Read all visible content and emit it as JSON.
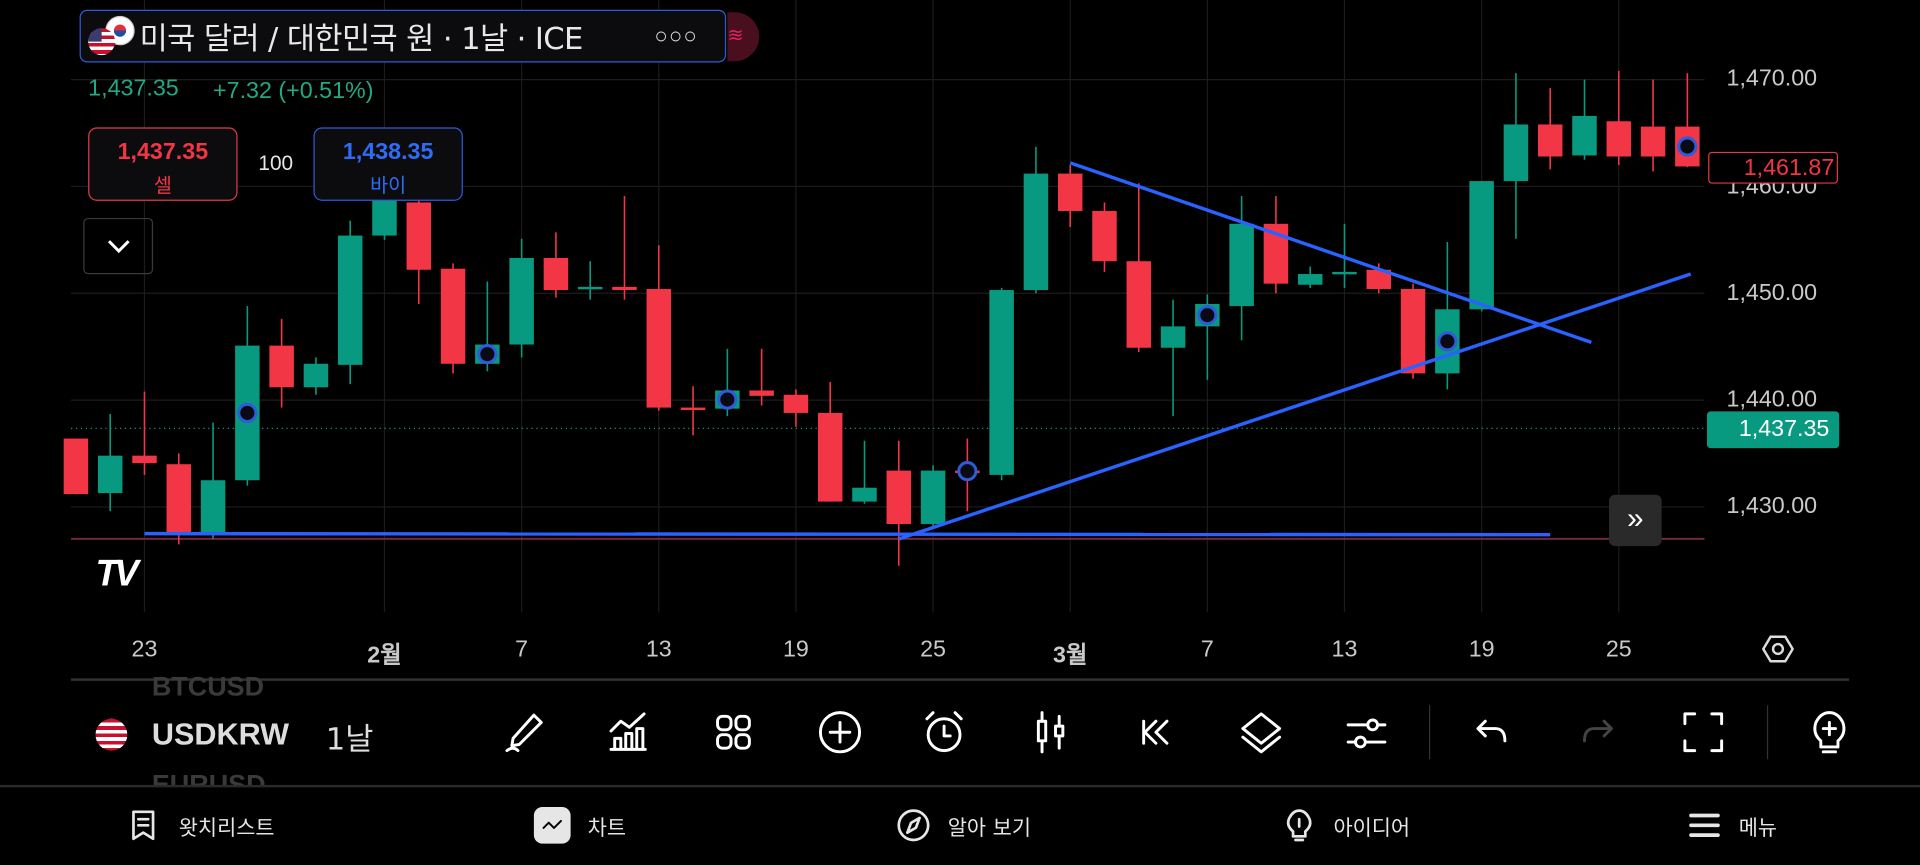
{
  "header": {
    "title": "미국 달러 / 대한민국 원 · 1날 · ICE",
    "more_icon": "ellipsis-icon",
    "last_price": "1,437.35",
    "change": "+7.32 (+0.51%)"
  },
  "trade": {
    "sell_price": "1,437.35",
    "sell_label": "셀",
    "quantity": "100",
    "buy_price": "1,438.35",
    "buy_label": "바이"
  },
  "colors": {
    "up": "#089981",
    "down": "#f23645",
    "line": "#2962ff",
    "accent_blue": "#2f5bd8"
  },
  "price_axis": {
    "labels": [
      "1,470.00",
      "1,460.00",
      "1,450.00",
      "1,440.00",
      "1,430.00"
    ],
    "current_label": "1,437.35",
    "last_bar_label": "1,461.87"
  },
  "chart_data": {
    "type": "candlestick",
    "title": "미국 달러 / 대한민국 원 · 1날 · ICE",
    "ylim": [
      1420,
      1475
    ],
    "yticks": [
      1430,
      1440,
      1450,
      1460,
      1470
    ],
    "current_price": 1437.35,
    "x_ticks": [
      {
        "bar": 3,
        "label": "23"
      },
      {
        "bar": 10,
        "label": "2월"
      },
      {
        "bar": 14,
        "label": "7"
      },
      {
        "bar": 18,
        "label": "13"
      },
      {
        "bar": 22,
        "label": "19"
      },
      {
        "bar": 26,
        "label": "25"
      },
      {
        "bar": 30,
        "label": "3월"
      },
      {
        "bar": 34,
        "label": "7"
      },
      {
        "bar": 38,
        "label": "13"
      },
      {
        "bar": 42,
        "label": "19"
      },
      {
        "bar": 46,
        "label": "25"
      }
    ],
    "ohlc": [
      [
        1436.4,
        1436.4,
        1431.2,
        1431.2
      ],
      [
        1431.3,
        1438.7,
        1429.6,
        1434.8
      ],
      [
        1434.8,
        1440.8,
        1433,
        1434.1
      ],
      [
        1434,
        1435,
        1426.5,
        1427.6
      ],
      [
        1427.6,
        1437.9,
        1427,
        1432.5
      ],
      [
        1432.5,
        1448.8,
        1432,
        1445.1
      ],
      [
        1445.1,
        1447.6,
        1439.3,
        1441.2
      ],
      [
        1441.2,
        1444,
        1440.5,
        1443.4
      ],
      [
        1443.3,
        1456.8,
        1441.5,
        1455.4
      ],
      [
        1455.4,
        1464.8,
        1455,
        1458.8
      ],
      [
        1458.5,
        1459.6,
        1449,
        1452.2
      ],
      [
        1452.3,
        1452.8,
        1442.5,
        1443.4
      ],
      [
        1443.4,
        1451.1,
        1442.7,
        1445.2
      ],
      [
        1445.2,
        1455.1,
        1444,
        1453.3
      ],
      [
        1453.3,
        1455.7,
        1449.6,
        1450.3
      ],
      [
        1450.4,
        1453,
        1449.4,
        1450.6
      ],
      [
        1450.6,
        1459.1,
        1449.4,
        1450.3
      ],
      [
        1450.4,
        1454.5,
        1439,
        1439.3
      ],
      [
        1439.3,
        1441.3,
        1436.7,
        1439.1
      ],
      [
        1439.2,
        1444.8,
        1438.5,
        1440.9
      ],
      [
        1440.9,
        1444.8,
        1439.5,
        1440.4
      ],
      [
        1440.5,
        1441,
        1437.5,
        1438.8
      ],
      [
        1438.8,
        1441.7,
        1430.5,
        1430.5
      ],
      [
        1430.5,
        1436.2,
        1430.3,
        1431.8
      ],
      [
        1433.4,
        1436.2,
        1424.5,
        1428.4
      ],
      [
        1428.4,
        1433.9,
        1428.2,
        1433.4
      ],
      [
        1433.4,
        1436.4,
        1429.6,
        1433.3
      ],
      [
        1433,
        1450.5,
        1432.5,
        1450.3
      ],
      [
        1450.3,
        1463.7,
        1450,
        1461.2
      ],
      [
        1461.2,
        1462,
        1456.2,
        1457.7
      ],
      [
        1457.7,
        1458.5,
        1452,
        1453
      ],
      [
        1453,
        1460.3,
        1444.5,
        1444.9
      ],
      [
        1444.9,
        1449.4,
        1438.5,
        1446.9
      ],
      [
        1446.9,
        1449.9,
        1441.9,
        1449
      ],
      [
        1448.8,
        1459.1,
        1445.6,
        1456.5
      ],
      [
        1456.5,
        1459.1,
        1450,
        1450.9
      ],
      [
        1450.8,
        1452.5,
        1450.5,
        1451.8
      ],
      [
        1451.9,
        1456.5,
        1450.5,
        1452
      ],
      [
        1452.2,
        1452.8,
        1450,
        1450.4
      ],
      [
        1450.4,
        1450.9,
        1442,
        1442.5
      ],
      [
        1442.5,
        1454.8,
        1441,
        1448.5
      ],
      [
        1448.5,
        1460.5,
        1448.3,
        1460.5
      ],
      [
        1460.5,
        1470.6,
        1455.1,
        1465.8
      ],
      [
        1465.8,
        1469.2,
        1461.6,
        1462.8
      ],
      [
        1462.9,
        1470,
        1462.5,
        1466.6
      ],
      [
        1466.1,
        1470.8,
        1462,
        1462.8
      ],
      [
        1465.6,
        1470,
        1461.4,
        1462.8
      ],
      [
        1465.6,
        1470.6,
        1461.8,
        1461.87
      ]
    ],
    "marker_bars": [
      6,
      13,
      20,
      27,
      34,
      41,
      48
    ],
    "trendlines": [
      {
        "from": [
          3,
          1427.5
        ],
        "to": [
          44,
          1427.4
        ]
      },
      {
        "from": [
          25,
          1427
        ],
        "to": [
          48.1,
          1451.8
        ]
      },
      {
        "from": [
          30,
          1462.2
        ],
        "to": [
          45.2,
          1445.4
        ]
      }
    ]
  },
  "toolbar": {
    "symbol_above": "BTCUSD",
    "symbol": "USDKRW",
    "symbol_below": "EURUSD",
    "interval": "1날",
    "icons": [
      "pencil-icon",
      "indicators-icon",
      "grid-icon",
      "plus-circle-icon",
      "alarm-icon",
      "candles-icon",
      "replay-icon",
      "layers-icon",
      "settings-sliders-icon",
      "undo-icon",
      "redo-icon",
      "fullscreen-icon",
      "idea-bulb-icon"
    ]
  },
  "bottom_nav": [
    {
      "label": "왓치리스트",
      "icon": "watchlist-icon"
    },
    {
      "label": "차트",
      "icon": "chart-icon"
    },
    {
      "label": "알아 보기",
      "icon": "compass-icon"
    },
    {
      "label": "아이디어",
      "icon": "bulb-icon"
    },
    {
      "label": "메뉴",
      "icon": "menu-icon"
    }
  ]
}
